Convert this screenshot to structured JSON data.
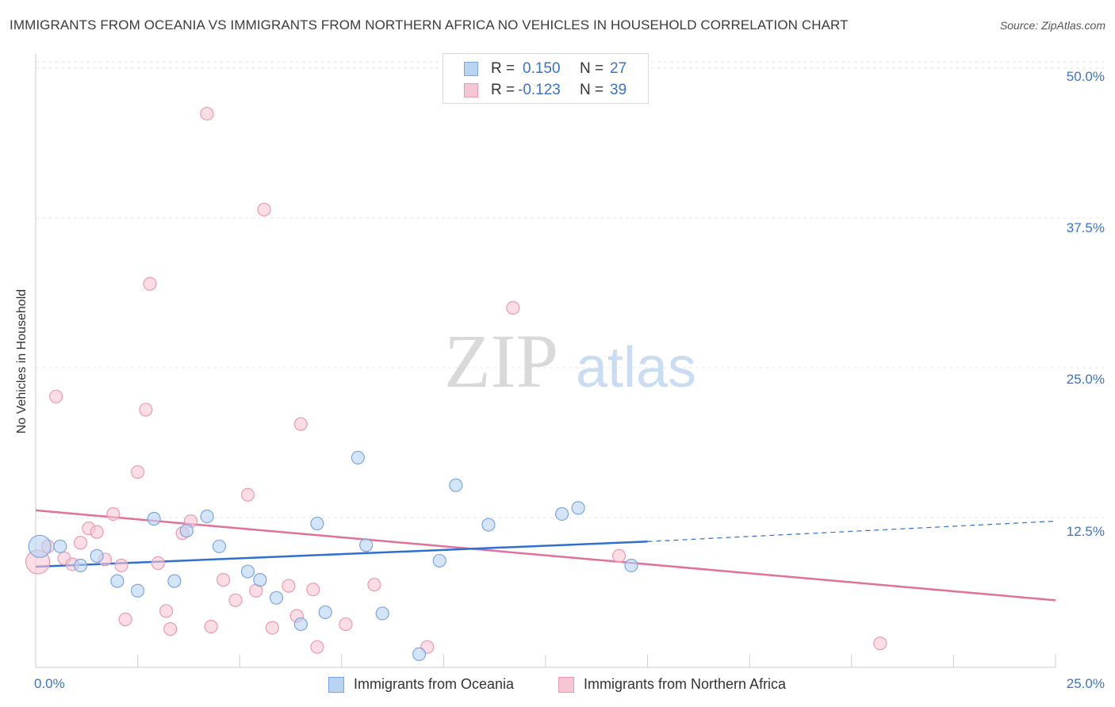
{
  "title": "IMMIGRANTS FROM OCEANIA VS IMMIGRANTS FROM NORTHERN AFRICA NO VEHICLES IN HOUSEHOLD CORRELATION CHART",
  "source": "Source: ZipAtlas.com",
  "watermark": {
    "zip": "ZIP",
    "atlas": "atlas"
  },
  "legend": {
    "r_label": "R =",
    "n_label": "N =",
    "rows": [
      {
        "r": "0.150",
        "n": "27"
      },
      {
        "r": "-0.123",
        "n": "39"
      }
    ]
  },
  "colors": {
    "oceania_fill": "#b9d3f3",
    "oceania_stroke": "#7aa6df",
    "oceania_line": "#2e6fcf",
    "nafrica_fill": "#f7c6d4",
    "nafrica_stroke": "#e99ab1",
    "nafrica_line": "#e0719a",
    "tick_label": "#3a73c9",
    "grid": "#e6e6e6"
  },
  "chart_data": {
    "type": "scatter",
    "title": "IMMIGRANTS FROM OCEANIA VS IMMIGRANTS FROM NORTHERN AFRICA NO VEHICLES IN HOUSEHOLD CORRELATION CHART",
    "xlabel": "",
    "ylabel": "No Vehicles in Household",
    "xlim": [
      0,
      25
    ],
    "ylim": [
      0,
      51.2
    ],
    "x_tick_labels": [
      "0.0%",
      "25.0%"
    ],
    "y_ticks": [
      12.5,
      25.0,
      37.5,
      50.0
    ],
    "y_tick_labels": [
      "12.5%",
      "25.0%",
      "37.5%",
      "50.0%"
    ],
    "grid": true,
    "legend_position": "top-center",
    "series": [
      {
        "name": "Immigrants from Oceania",
        "r": 0.15,
        "n": 27,
        "trend": {
          "x0": 0,
          "y0": 8.4,
          "x1": 15,
          "y1": 10.5,
          "dashed_to_x": 25,
          "dashed_to_y": 12.2
        },
        "points": [
          {
            "x": 0.1,
            "y": 10.1,
            "big": true
          },
          {
            "x": 0.6,
            "y": 10.1
          },
          {
            "x": 1.1,
            "y": 8.5
          },
          {
            "x": 1.5,
            "y": 9.3
          },
          {
            "x": 2.0,
            "y": 7.2
          },
          {
            "x": 2.5,
            "y": 6.4
          },
          {
            "x": 2.9,
            "y": 12.4
          },
          {
            "x": 3.4,
            "y": 7.2
          },
          {
            "x": 3.7,
            "y": 11.4
          },
          {
            "x": 4.2,
            "y": 12.6
          },
          {
            "x": 4.5,
            "y": 10.1
          },
          {
            "x": 5.2,
            "y": 8.0
          },
          {
            "x": 5.5,
            "y": 7.3
          },
          {
            "x": 5.9,
            "y": 5.8
          },
          {
            "x": 6.5,
            "y": 3.6
          },
          {
            "x": 6.9,
            "y": 12.0
          },
          {
            "x": 7.1,
            "y": 4.6
          },
          {
            "x": 7.9,
            "y": 17.5
          },
          {
            "x": 8.1,
            "y": 10.2
          },
          {
            "x": 8.5,
            "y": 4.5
          },
          {
            "x": 9.4,
            "y": 1.1
          },
          {
            "x": 9.9,
            "y": 8.9
          },
          {
            "x": 10.3,
            "y": 15.2
          },
          {
            "x": 11.1,
            "y": 11.9
          },
          {
            "x": 12.9,
            "y": 12.8
          },
          {
            "x": 13.3,
            "y": 13.3
          },
          {
            "x": 14.6,
            "y": 8.5
          }
        ]
      },
      {
        "name": "Immigrants from Northern Africa",
        "r": -0.123,
        "n": 39,
        "trend": {
          "x0": 0,
          "y0": 13.1,
          "x1": 25,
          "y1": 5.6
        },
        "points": [
          {
            "x": 0.05,
            "y": 8.8,
            "big": true
          },
          {
            "x": 0.3,
            "y": 10.1
          },
          {
            "x": 0.5,
            "y": 22.6
          },
          {
            "x": 0.7,
            "y": 9.1
          },
          {
            "x": 0.9,
            "y": 8.6
          },
          {
            "x": 1.1,
            "y": 10.4
          },
          {
            "x": 1.3,
            "y": 11.6
          },
          {
            "x": 1.5,
            "y": 11.3
          },
          {
            "x": 1.7,
            "y": 9.0
          },
          {
            "x": 1.9,
            "y": 12.8
          },
          {
            "x": 2.1,
            "y": 8.5
          },
          {
            "x": 2.2,
            "y": 4.0
          },
          {
            "x": 2.5,
            "y": 16.3
          },
          {
            "x": 2.7,
            "y": 21.5
          },
          {
            "x": 2.8,
            "y": 32.0
          },
          {
            "x": 3.0,
            "y": 8.7
          },
          {
            "x": 3.2,
            "y": 4.7
          },
          {
            "x": 3.3,
            "y": 3.2
          },
          {
            "x": 3.6,
            "y": 11.2
          },
          {
            "x": 3.8,
            "y": 12.2
          },
          {
            "x": 4.3,
            "y": 3.4
          },
          {
            "x": 4.6,
            "y": 7.3
          },
          {
            "x": 4.9,
            "y": 5.6
          },
          {
            "x": 5.2,
            "y": 14.4
          },
          {
            "x": 5.4,
            "y": 6.4
          },
          {
            "x": 5.6,
            "y": 38.2
          },
          {
            "x": 5.8,
            "y": 3.3
          },
          {
            "x": 6.2,
            "y": 6.8
          },
          {
            "x": 6.4,
            "y": 4.3
          },
          {
            "x": 6.5,
            "y": 20.3
          },
          {
            "x": 6.8,
            "y": 6.5
          },
          {
            "x": 6.9,
            "y": 1.7
          },
          {
            "x": 7.6,
            "y": 3.6
          },
          {
            "x": 8.3,
            "y": 6.9
          },
          {
            "x": 9.6,
            "y": 1.7
          },
          {
            "x": 11.7,
            "y": 30.0
          },
          {
            "x": 14.3,
            "y": 9.3
          },
          {
            "x": 20.7,
            "y": 2.0
          },
          {
            "x": 4.2,
            "y": 46.2
          }
        ]
      }
    ]
  }
}
